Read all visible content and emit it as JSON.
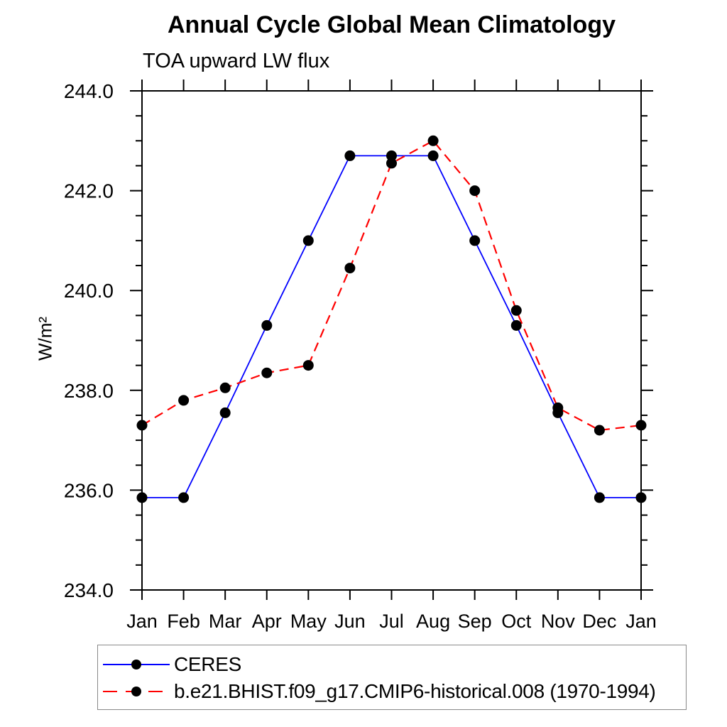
{
  "chart_data": {
    "type": "line",
    "title": "Annual Cycle Global Mean Climatology",
    "subtitle": "TOA upward LW flux",
    "ylabel": "W/m²",
    "xlabel": "",
    "categories": [
      "Jan",
      "Feb",
      "Mar",
      "Apr",
      "May",
      "Jun",
      "Jul",
      "Aug",
      "Sep",
      "Oct",
      "Nov",
      "Dec",
      "Jan"
    ],
    "ylim": [
      234.0,
      244.0
    ],
    "y_major_tick_step": 2.0,
    "y_minor_tick_step": 0.5,
    "y_tick_labels": [
      "234.0",
      "236.0",
      "238.0",
      "240.0",
      "242.0",
      "244.0"
    ],
    "grid": false,
    "legend_position": "bottom-left",
    "frame_color": "#000000",
    "marker_color": "#000000",
    "series": [
      {
        "name": "CERES",
        "color": "#0000ff",
        "line_style": "solid",
        "marker": "circle",
        "values": [
          235.85,
          235.85,
          237.55,
          239.3,
          241.0,
          242.7,
          242.7,
          242.7,
          241.0,
          239.3,
          237.55,
          235.85,
          235.85
        ]
      },
      {
        "name": "b.e21.BHIST.f09_g17.CMIP6-historical.008 (1970-1994)",
        "color": "#ff0000",
        "line_style": "dashed",
        "marker": "circle",
        "values": [
          237.3,
          237.8,
          238.05,
          238.35,
          238.5,
          240.45,
          242.55,
          243.0,
          242.0,
          239.6,
          237.65,
          237.2,
          237.3
        ]
      }
    ]
  }
}
